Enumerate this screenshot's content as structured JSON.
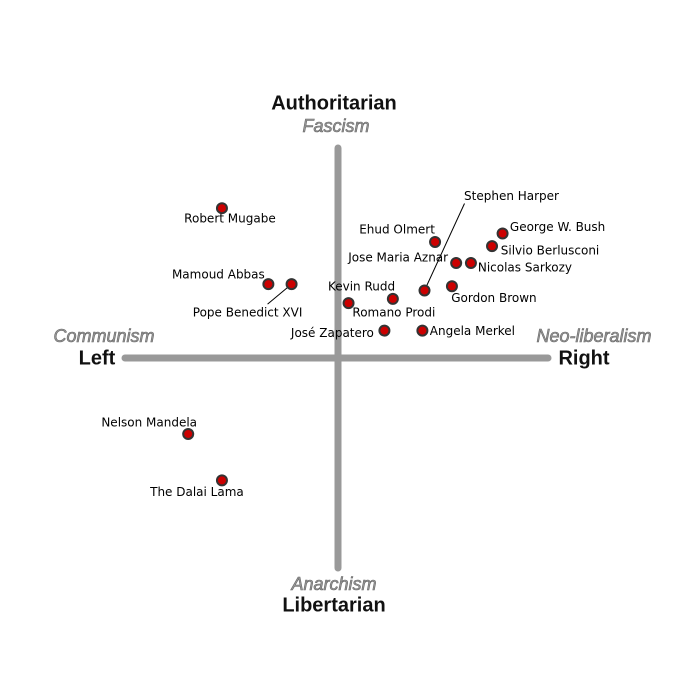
{
  "chart_data": {
    "type": "scatter",
    "axis_labels": {
      "top": "Authoritarian",
      "top_sub": "Fascism",
      "bottom": "Libertarian",
      "bottom_sub": "Anarchism",
      "left": "Left",
      "left_sub": "Communism",
      "right": "Right",
      "right_sub": "Neo-liberalism"
    },
    "xlim": [
      -10,
      10
    ],
    "ylim": [
      -10,
      10
    ],
    "point_color": "#cc0000",
    "points": [
      {
        "label": "Robert Mugabe",
        "x": -5.5,
        "y": 7.1
      },
      {
        "label": "Mamoud Abbas",
        "x": -3.3,
        "y": 3.5
      },
      {
        "label": "Pope Benedict XVI",
        "x": -2.2,
        "y": 3.5
      },
      {
        "label": "Nelson Mandela",
        "x": -7.1,
        "y": -3.6
      },
      {
        "label": "The Dalai Lama",
        "x": -5.5,
        "y": -5.8
      },
      {
        "label": "Kevin Rudd",
        "x": 0.5,
        "y": 2.6
      },
      {
        "label": "Romano Prodi",
        "x": 2.6,
        "y": 2.8
      },
      {
        "label": "José Zapatero",
        "x": 2.2,
        "y": 1.3
      },
      {
        "label": "Angela Merkel",
        "x": 4.0,
        "y": 1.3
      },
      {
        "label": "Ehud Olmert",
        "x": 4.6,
        "y": 5.5
      },
      {
        "label": "Stephen Harper",
        "x": 4.1,
        "y": 3.2
      },
      {
        "label": "Jose Maria Aznar",
        "x": 5.6,
        "y": 4.5
      },
      {
        "label": "Nicolas Sarkozy",
        "x": 6.3,
        "y": 4.5
      },
      {
        "label": "Gordon Brown",
        "x": 5.4,
        "y": 3.4
      },
      {
        "label": "George W. Bush",
        "x": 7.8,
        "y": 5.9
      },
      {
        "label": "Silvio Berlusconi",
        "x": 7.3,
        "y": 5.3
      }
    ]
  }
}
